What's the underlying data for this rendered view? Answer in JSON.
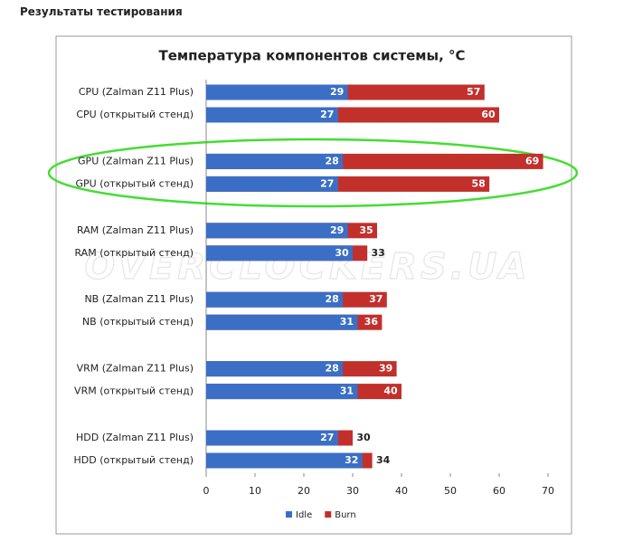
{
  "header": {
    "title": "Результаты тестирования"
  },
  "chart_data": {
    "type": "bar",
    "orientation": "horizontal",
    "overlap": true,
    "title": "Температура компонентов системы, °C",
    "watermark": "OVERCLOCKERS.UA",
    "categories": [
      "CPU (Zalman  Z11 Plus)",
      "CPU (открытый стенд)",
      "GPU (Zalman  Z11 Plus)",
      "GPU (открытый стенд)",
      "RAM (Zalman  Z11 Plus)",
      "RAM (открытый стенд)",
      "NB (Zalman  Z11 Plus)",
      "NB (открытый стенд)",
      "VRM (Zalman  Z11 Plus)",
      "VRM (открытый стенд)",
      "HDD (Zalman  Z11 Plus)",
      "HDD (открытый стенд)"
    ],
    "series": [
      {
        "name": "Idle",
        "color": "#3b6fc6",
        "values": [
          29,
          27,
          28,
          27,
          29,
          30,
          28,
          31,
          28,
          31,
          27,
          32
        ]
      },
      {
        "name": "Burn",
        "color": "#c2302c",
        "values": [
          57,
          60,
          69,
          58,
          35,
          33,
          37,
          36,
          39,
          40,
          30,
          34
        ]
      }
    ],
    "xlim": [
      0,
      70
    ],
    "xticks": [
      0,
      10,
      20,
      30,
      40,
      50,
      60,
      70
    ],
    "legend": "bottom"
  }
}
